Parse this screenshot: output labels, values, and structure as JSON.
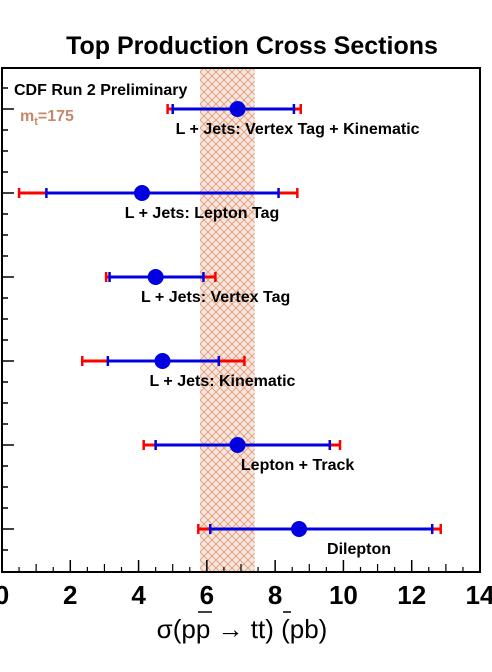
{
  "chart_data": {
    "type": "scatter",
    "title": "Top Production Cross Sections",
    "note": "CDF Run 2 Preliminary",
    "mass_label": {
      "base": "m",
      "sub": "t",
      "value": "=175"
    },
    "xlabel": "σ(pp → tt) (pb)",
    "xlim": [
      0,
      14
    ],
    "xticks": [
      0,
      2,
      4,
      6,
      8,
      10,
      12,
      14
    ],
    "theory_band": {
      "lo": 5.8,
      "hi": 7.4,
      "color": "#e8b49a"
    },
    "stat_color": "#0000e0",
    "syst_color": "#ff0000",
    "points": [
      {
        "label": "L + Jets: Vertex Tag + Kinematic",
        "value": 6.9,
        "stat_lo": 5.0,
        "stat_hi": 8.55,
        "syst_lo": 4.85,
        "syst_hi": 8.75
      },
      {
        "label": "L + Jets: Lepton Tag",
        "value": 4.1,
        "stat_lo": 1.3,
        "stat_hi": 8.1,
        "syst_lo": 0.5,
        "syst_hi": 8.65
      },
      {
        "label": "L + Jets: Vertex Tag",
        "value": 4.5,
        "stat_lo": 3.15,
        "stat_hi": 5.9,
        "syst_lo": 3.05,
        "syst_hi": 6.25
      },
      {
        "label": "L + Jets: Kinematic",
        "value": 4.7,
        "stat_lo": 3.1,
        "stat_hi": 6.35,
        "syst_lo": 2.35,
        "syst_hi": 7.1
      },
      {
        "label": "Lepton + Track",
        "value": 6.9,
        "stat_lo": 4.5,
        "stat_hi": 9.6,
        "syst_lo": 4.15,
        "syst_hi": 9.9
      },
      {
        "label": "Dilepton",
        "value": 8.7,
        "stat_lo": 6.1,
        "stat_hi": 12.6,
        "syst_lo": 5.75,
        "syst_hi": 12.85
      }
    ]
  }
}
